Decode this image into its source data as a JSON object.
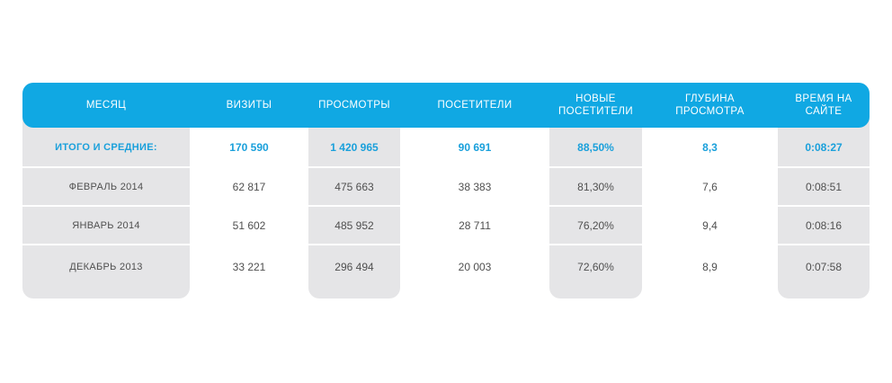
{
  "colors": {
    "header_bg": "#10a8e3",
    "column_bg": "#e5e5e7",
    "totals_text": "#1aa0db",
    "body_text": "#4f4f4f",
    "header_text": "#ffffff"
  },
  "table": {
    "headers": [
      "МЕСЯЦ",
      "ВИЗИТЫ",
      "ПРОСМОТРЫ",
      "ПОСЕТИТЕЛИ",
      "НОВЫЕ ПОСЕТИТЕЛИ",
      "ГЛУБИНА ПРОСМОТРА",
      "ВРЕМЯ НА САЙТЕ"
    ],
    "totals": [
      "ИТОГО И СРЕДНИЕ:",
      "170 590",
      "1 420 965",
      "90 691",
      "88,50%",
      "8,3",
      "0:08:27"
    ],
    "rows": [
      [
        "ФЕВРАЛЬ 2014",
        "62 817",
        "475 663",
        "38 383",
        "81,30%",
        "7,6",
        "0:08:51"
      ],
      [
        "ЯНВАРЬ 2014",
        "51 602",
        "485 952",
        "28 711",
        "76,20%",
        "9,4",
        "0:08:16"
      ],
      [
        "ДЕКАБРЬ 2013",
        "33 221",
        "296 494",
        "20 003",
        "72,60%",
        "8,9",
        "0:07:58"
      ]
    ]
  }
}
